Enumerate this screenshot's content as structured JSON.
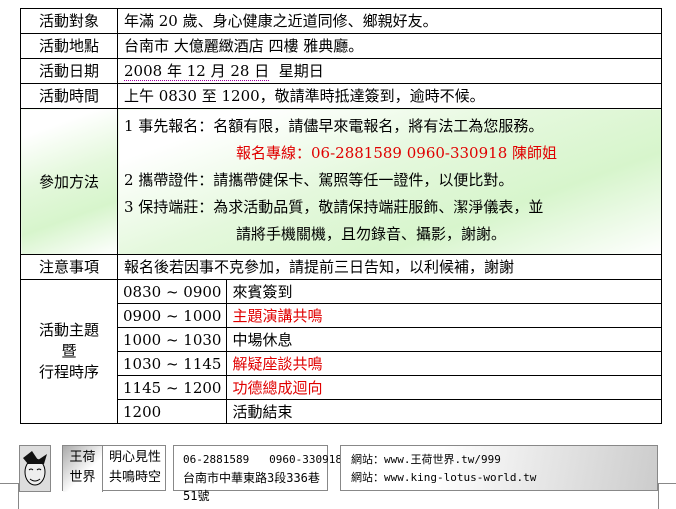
{
  "rows": [
    {
      "label": "活動對象",
      "value": "年滿 20 歲、身心健康之近道同修、鄉親好友。"
    },
    {
      "label": "活動地點",
      "value": "台南市 大億麗緻酒店 四樓 雅典廳。"
    },
    {
      "label": "活動日期",
      "date": "2008 年 12 月 28 日",
      "weekday": "星期日"
    },
    {
      "label": "活動時間",
      "value": "上午 0830 至 1200，敬請準時抵達簽到，逾時不候。"
    }
  ],
  "method": {
    "label": "參加方法",
    "item1": "1  事先報名：名額有限，請儘早來電報名，將有法工為您服務。",
    "item1_hotline": "報名專線：06-2881589    0960-330918    陳師姐",
    "item2": "2  攜帶證件：請攜帶健保卡、駕照等任一證件，以便比對。",
    "item3": "3  保持端莊：為求活動品質，敬請保持端莊服飾、潔淨儀表，並",
    "item3_cont": "請將手機關機，且勿錄音、攝影，謝謝。"
  },
  "notice": {
    "label": "注意事項",
    "value": "報名後若因事不克參加，請提前三日告知，以利候補，謝謝"
  },
  "schedule": {
    "label1": "活動主題",
    "label2": "暨",
    "label3": "行程時序",
    "items": [
      {
        "time": "0830 ~ 0900",
        "event": "來賓簽到",
        "red": false
      },
      {
        "time": "0900 ~ 1000",
        "event": "主題演講共鳴",
        "red": true
      },
      {
        "time": "1000 ~ 1030",
        "event": "中場休息",
        "red": false
      },
      {
        "time": "1030 ~ 1145",
        "event": "解疑座談共鳴",
        "red": true
      },
      {
        "time": "1145 ~ 1200",
        "event": "功德總成迴向",
        "red": true
      },
      {
        "time": "1200",
        "event": "活動結束",
        "red": false
      }
    ]
  },
  "footer": {
    "brand1": "王荷",
    "brand2": "世界",
    "slogan1": "明心見性",
    "slogan2": "共鳴時空",
    "phones": "06-2881589   0960-330918",
    "address": "台南市中華東路3段336巷51號",
    "web1": "網站：www.王荷世界.tw/999",
    "web2": "網站：www.king-lotus-world.tw"
  },
  "colors": {
    "red": "#e00000",
    "green": "#d7f5cc"
  }
}
